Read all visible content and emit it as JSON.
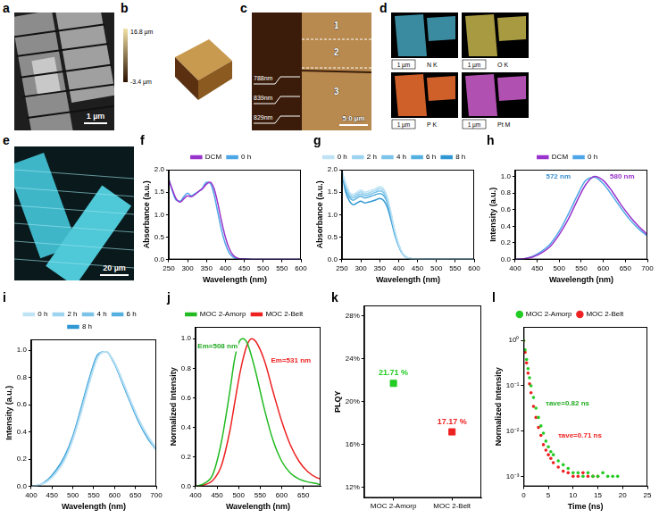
{
  "chart_data": [
    {
      "panel": "f",
      "type": "line",
      "x_label": "Wavelength (nm)",
      "y_label": "Absorbance (a.u.)",
      "x": [
        250,
        260,
        270,
        280,
        290,
        300,
        310,
        320,
        330,
        340,
        350,
        360,
        370,
        380,
        390,
        400,
        410,
        420,
        430,
        450,
        500,
        550,
        600
      ],
      "series": [
        {
          "name": "DCM",
          "color": "#9933cc",
          "values": [
            1.78,
            1.55,
            1.35,
            1.28,
            1.35,
            1.42,
            1.4,
            1.45,
            1.52,
            1.58,
            1.68,
            1.72,
            1.58,
            1.25,
            0.85,
            0.5,
            0.25,
            0.1,
            0.04,
            0.01,
            0,
            0,
            0
          ]
        },
        {
          "name": "0 h",
          "color": "#4da6e8",
          "values": [
            1.8,
            1.52,
            1.32,
            1.3,
            1.4,
            1.48,
            1.42,
            1.47,
            1.52,
            1.6,
            1.72,
            1.7,
            1.45,
            1.05,
            0.65,
            0.35,
            0.15,
            0.06,
            0.02,
            0.01,
            0,
            0,
            0
          ]
        }
      ],
      "xlim": [
        250,
        600
      ],
      "xticks": [
        250,
        300,
        350,
        400,
        450,
        500,
        550,
        600
      ],
      "ylim": [
        0,
        2
      ],
      "yticks": [
        {
          "value": 0,
          "label": "0.0"
        },
        {
          "value": 0.5,
          "label": "0.5"
        },
        {
          "value": 1,
          "label": "1.0"
        },
        {
          "value": 1.5,
          "label": "1.5"
        },
        {
          "value": 2,
          "label": "2.0"
        }
      ],
      "legend": "top",
      "grid": false
    },
    {
      "panel": "g",
      "type": "line",
      "x_label": "Wavelength (nm)",
      "y_label": "Absorbance (a.u.)",
      "x": [
        250,
        260,
        270,
        280,
        290,
        300,
        310,
        320,
        330,
        340,
        350,
        360,
        370,
        380,
        390,
        400,
        410,
        420,
        430,
        450,
        500,
        550,
        600
      ],
      "series": [
        {
          "name": "0 h",
          "color": "#bfe3f5",
          "values": [
            1.98,
            1.7,
            1.5,
            1.45,
            1.5,
            1.55,
            1.5,
            1.52,
            1.55,
            1.58,
            1.62,
            1.58,
            1.4,
            1.05,
            0.65,
            0.35,
            0.15,
            0.06,
            0.02,
            0.01,
            0,
            0,
            0
          ]
        },
        {
          "name": "2 h",
          "color": "#9dd4ef",
          "values": [
            1.96,
            1.66,
            1.46,
            1.41,
            1.46,
            1.51,
            1.46,
            1.48,
            1.51,
            1.54,
            1.58,
            1.54,
            1.36,
            1.02,
            0.63,
            0.34,
            0.15,
            0.06,
            0.02,
            0.01,
            0,
            0,
            0
          ]
        },
        {
          "name": "4 h",
          "color": "#7cc3e8",
          "values": [
            1.95,
            1.62,
            1.42,
            1.37,
            1.42,
            1.46,
            1.42,
            1.44,
            1.47,
            1.5,
            1.53,
            1.49,
            1.32,
            0.99,
            0.61,
            0.33,
            0.14,
            0.06,
            0.02,
            0.01,
            0,
            0,
            0
          ]
        },
        {
          "name": "6 h",
          "color": "#55b0e0",
          "values": [
            1.94,
            1.58,
            1.38,
            1.32,
            1.37,
            1.41,
            1.37,
            1.39,
            1.42,
            1.45,
            1.47,
            1.43,
            1.27,
            0.95,
            0.59,
            0.32,
            0.14,
            0.05,
            0.02,
            0.01,
            0,
            0,
            0
          ]
        },
        {
          "name": "8 h",
          "color": "#2f97d4",
          "values": [
            1.92,
            1.5,
            1.3,
            1.22,
            1.26,
            1.3,
            1.26,
            1.28,
            1.3,
            1.33,
            1.36,
            1.32,
            1.17,
            0.88,
            0.55,
            0.3,
            0.13,
            0.05,
            0.02,
            0.01,
            0,
            0,
            0
          ]
        }
      ],
      "xlim": [
        250,
        600
      ],
      "xticks": [
        250,
        300,
        350,
        400,
        450,
        500,
        550,
        600
      ],
      "ylim": [
        0,
        2
      ],
      "yticks": [
        {
          "value": 0,
          "label": "0.0"
        },
        {
          "value": 0.5,
          "label": "0.5"
        },
        {
          "value": 1,
          "label": "1.0"
        },
        {
          "value": 1.5,
          "label": "1.5"
        },
        {
          "value": 2,
          "label": "2.0"
        }
      ],
      "legend": "top",
      "grid": false
    },
    {
      "panel": "h",
      "type": "line",
      "x_label": "Wavelength (nm)",
      "y_label": "Intensity (a.u.)",
      "x": [
        400,
        420,
        440,
        460,
        480,
        500,
        520,
        540,
        560,
        580,
        600,
        620,
        640,
        660,
        680,
        700
      ],
      "series": [
        {
          "name": "DCM",
          "color": "#9933cc",
          "values": [
            0,
            0.01,
            0.03,
            0.08,
            0.16,
            0.3,
            0.48,
            0.7,
            0.9,
            1.0,
            0.95,
            0.82,
            0.66,
            0.52,
            0.4,
            0.3
          ]
        },
        {
          "name": "0 h",
          "color": "#4da6e8",
          "values": [
            0,
            0.01,
            0.04,
            0.1,
            0.19,
            0.34,
            0.54,
            0.76,
            0.95,
            0.99,
            0.91,
            0.77,
            0.62,
            0.48,
            0.37,
            0.28
          ]
        }
      ],
      "xlim": [
        400,
        700
      ],
      "xticks": [
        400,
        450,
        500,
        550,
        600,
        650,
        700
      ],
      "ylim": [
        0,
        1.08
      ],
      "yticks": [
        {
          "value": 0,
          "label": "0.0"
        },
        {
          "value": 0.2,
          "label": "0.2"
        },
        {
          "value": 0.4,
          "label": "0.4"
        },
        {
          "value": 0.6,
          "label": "0.6"
        },
        {
          "value": 0.8,
          "label": "0.8"
        },
        {
          "value": 1,
          "label": "1.0"
        }
      ],
      "annotations": [
        {
          "text": "572 nm",
          "x": 470,
          "y": 1.0,
          "color": "#3a8fd0"
        },
        {
          "text": "580 nm",
          "x": 615,
          "y": 1.0,
          "color": "#9933cc"
        }
      ],
      "legend": "top",
      "grid": false
    },
    {
      "panel": "i",
      "type": "line",
      "x_label": "Wavelength (nm)",
      "y_label": "Intensity (a.u.)",
      "x": [
        400,
        420,
        440,
        460,
        480,
        500,
        520,
        540,
        560,
        580,
        600,
        620,
        640,
        660,
        680,
        700
      ],
      "series": [
        {
          "name": "0 h",
          "color": "#bfe3f5",
          "values": [
            0,
            0.01,
            0.04,
            0.1,
            0.19,
            0.34,
            0.54,
            0.76,
            0.95,
            0.99,
            0.91,
            0.77,
            0.62,
            0.48,
            0.37,
            0.28
          ]
        },
        {
          "name": "2 h",
          "color": "#9dd4ef",
          "values": [
            0,
            0.01,
            0.04,
            0.1,
            0.2,
            0.35,
            0.55,
            0.77,
            0.95,
            0.99,
            0.91,
            0.77,
            0.62,
            0.48,
            0.37,
            0.28
          ]
        },
        {
          "name": "4 h",
          "color": "#7cc3e8",
          "values": [
            0,
            0.01,
            0.04,
            0.11,
            0.2,
            0.35,
            0.56,
            0.78,
            0.96,
            0.99,
            0.9,
            0.76,
            0.61,
            0.47,
            0.36,
            0.27
          ]
        },
        {
          "name": "6 h",
          "color": "#55b0e0",
          "values": [
            0,
            0.01,
            0.05,
            0.11,
            0.21,
            0.36,
            0.57,
            0.79,
            0.96,
            0.99,
            0.9,
            0.76,
            0.61,
            0.47,
            0.36,
            0.27
          ]
        },
        {
          "name": "8 h",
          "color": "#2f97d4",
          "values": [
            0,
            0.01,
            0.05,
            0.12,
            0.22,
            0.37,
            0.58,
            0.8,
            0.97,
            0.99,
            0.9,
            0.75,
            0.6,
            0.46,
            0.35,
            0.27
          ]
        }
      ],
      "xlim": [
        400,
        700
      ],
      "xticks": [
        400,
        450,
        500,
        550,
        600,
        650,
        700
      ],
      "ylim": [
        0,
        1.08
      ],
      "yticks": [
        {
          "value": 0,
          "label": "0.0"
        },
        {
          "value": 0.2,
          "label": "0.2"
        },
        {
          "value": 0.4,
          "label": "0.4"
        },
        {
          "value": 0.6,
          "label": "0.6"
        },
        {
          "value": 0.8,
          "label": "0.8"
        },
        {
          "value": 1,
          "label": "1.0"
        }
      ],
      "legend": "top",
      "grid": false
    },
    {
      "panel": "j",
      "type": "line",
      "x_label": "Wavelength (nm)",
      "y_label": "Normalized Intensity",
      "x": [
        400,
        420,
        440,
        460,
        480,
        490,
        500,
        510,
        520,
        530,
        540,
        560,
        580,
        600,
        620,
        640,
        660,
        680,
        690
      ],
      "series": [
        {
          "name": "MOC 2-Amorp",
          "color": "#22bb22",
          "values": [
            0,
            0.02,
            0.08,
            0.3,
            0.65,
            0.85,
            0.97,
            1.0,
            0.97,
            0.88,
            0.77,
            0.52,
            0.31,
            0.17,
            0.09,
            0.05,
            0.03,
            0.02,
            0.01
          ]
        },
        {
          "name": "MOC 2-Belt",
          "color": "#ee2222",
          "values": [
            0,
            0.01,
            0.04,
            0.14,
            0.38,
            0.55,
            0.72,
            0.86,
            0.96,
            1.0,
            0.98,
            0.85,
            0.64,
            0.44,
            0.28,
            0.17,
            0.1,
            0.06,
            0.05
          ]
        }
      ],
      "xlim": [
        400,
        690
      ],
      "xticks": [
        400,
        450,
        500,
        550,
        600,
        650
      ],
      "ylim": [
        0,
        1.08
      ],
      "yticks": [
        {
          "value": 0,
          "label": "0.0"
        },
        {
          "value": 0.2,
          "label": "0.2"
        },
        {
          "value": 0.4,
          "label": "0.4"
        },
        {
          "value": 0.6,
          "label": "0.6"
        },
        {
          "value": 0.8,
          "label": "0.8"
        },
        {
          "value": 1,
          "label": "1.0"
        }
      ],
      "annotations": [
        {
          "text": "Em=508 nm",
          "x": 405,
          "y": 0.95,
          "color": "#22aa22"
        },
        {
          "text": "Em=531 nm",
          "x": 575,
          "y": 0.85,
          "color": "#ee2222"
        }
      ],
      "legend": "top",
      "grid": false
    },
    {
      "panel": "k",
      "type": "scatter",
      "y_label": "PLQY",
      "categories": [
        "MOC 2-Amorp",
        "MOC 2-Belt"
      ],
      "values": [
        21.71,
        17.17
      ],
      "value_labels": [
        "21.71 %",
        "17.17 %"
      ],
      "colors": [
        "#22cc22",
        "#ee2222"
      ],
      "marker": "square",
      "data_labels": true,
      "ylim": [
        11,
        29
      ],
      "yticks": [
        {
          "value": 12,
          "label": "12%"
        },
        {
          "value": 16,
          "label": "16%"
        },
        {
          "value": 20,
          "label": "20%"
        },
        {
          "value": 24,
          "label": "24%"
        },
        {
          "value": 28,
          "label": "28%"
        }
      ],
      "grid": false
    },
    {
      "panel": "l",
      "type": "scatter",
      "x_label": "Time (ns)",
      "y_label": "Normalized Intensity",
      "log": "y",
      "marker": "circle",
      "series": [
        {
          "name": "MOC 2-Amorp",
          "color": "#22cc22",
          "x": [
            0,
            0.3,
            0.6,
            0.9,
            1.2,
            1.5,
            2,
            2.5,
            3,
            3.5,
            4,
            4.5,
            5,
            5.5,
            6,
            7,
            8,
            9,
            10,
            11,
            12,
            13,
            14,
            15,
            16,
            17,
            18,
            19
          ],
          "values": [
            1,
            0.62,
            0.38,
            0.24,
            0.15,
            0.1,
            0.055,
            0.032,
            0.02,
            0.013,
            0.009,
            0.006,
            0.0045,
            0.0035,
            0.003,
            0.0022,
            0.0018,
            0.0015,
            0.0012,
            0.0012,
            0.001,
            0.0012,
            0.001,
            0.001,
            0.0012,
            0.001,
            0.001,
            0.001
          ]
        },
        {
          "name": "MOC 2-Belt",
          "color": "#ee2222",
          "x": [
            0,
            0.3,
            0.6,
            0.9,
            1.2,
            1.5,
            2,
            2.5,
            3,
            3.5,
            4,
            4.5,
            5,
            5.5,
            6,
            7,
            8,
            9,
            10,
            11,
            12,
            13,
            14,
            15
          ],
          "values": [
            1,
            0.55,
            0.32,
            0.19,
            0.11,
            0.07,
            0.035,
            0.02,
            0.012,
            0.008,
            0.005,
            0.0038,
            0.003,
            0.0025,
            0.002,
            0.0016,
            0.0013,
            0.0012,
            0.001,
            0.001,
            0.0012,
            0.001,
            0.001,
            0.001
          ]
        }
      ],
      "xlim": [
        0,
        25
      ],
      "xticks": [
        0,
        5,
        10,
        15,
        20,
        25
      ],
      "ylim": [
        0.0006,
        2
      ],
      "yticks": [
        {
          "value": 0.001,
          "label": "10⁻³"
        },
        {
          "value": 0.01,
          "label": "10⁻²"
        },
        {
          "value": 0.1,
          "label": "10⁻¹"
        },
        {
          "value": 1,
          "label": "10⁰"
        }
      ],
      "annotations": [
        {
          "text": "τave=0.82 ns",
          "x": 4.5,
          "y": 0.04,
          "color": "#22aa22"
        },
        {
          "text": "τave=0.71 ns",
          "x": 7,
          "y": 0.008,
          "color": "#ee2222"
        }
      ],
      "legend": "top",
      "grid": false
    }
  ],
  "images": [
    {
      "panel": "a",
      "scale_bar": "1 µm"
    },
    {
      "panel": "b",
      "color_bar": [
        "16.8 µm",
        "-3.4 µm"
      ]
    },
    {
      "panel": "c",
      "regions": [
        "1",
        "2",
        "3"
      ],
      "heights": [
        "788nm",
        "839nm",
        "829nm"
      ],
      "scale_bar": "5.0 µm"
    },
    {
      "panel": "d",
      "maps": [
        "N K",
        "O K",
        "P K",
        "Pt M"
      ],
      "scale_bar": "1 µm"
    },
    {
      "panel": "e",
      "scale_bar": "20 µm"
    }
  ]
}
